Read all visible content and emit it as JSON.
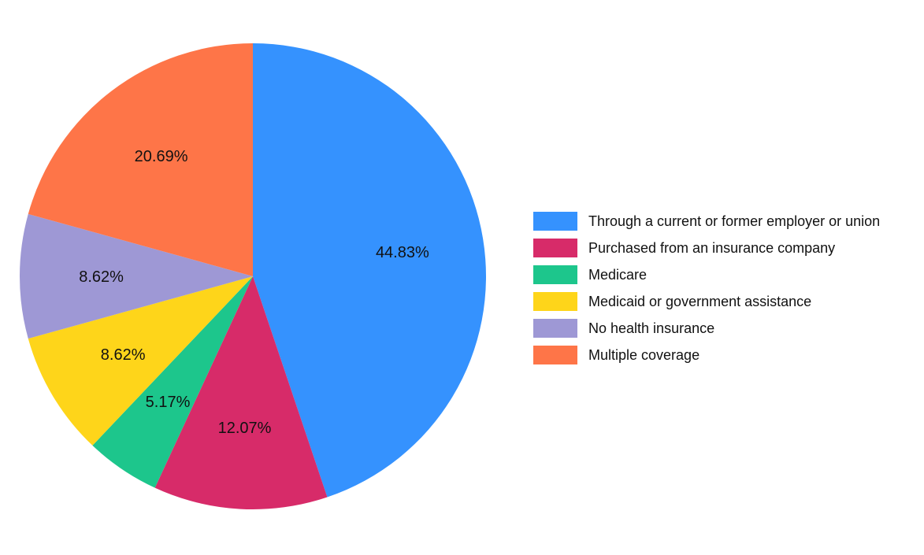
{
  "chart_data": {
    "type": "pie",
    "title": "",
    "categories": [
      "Through a current or former employer or union",
      "Purchased from an insurance company",
      "Medicare",
      "Medicaid or government assistance",
      "No health insurance",
      "Multiple coverage"
    ],
    "values": [
      44.83,
      12.07,
      5.17,
      8.62,
      8.62,
      20.69
    ],
    "labels": [
      "44.83%",
      "12.07%",
      "5.17%",
      "8.62%",
      "8.62%",
      "20.69%"
    ],
    "colors": [
      "#3592FE",
      "#D72B69",
      "#1DC68C",
      "#FED51A",
      "#9E98D5",
      "#FE7548"
    ],
    "legend_position": "right",
    "start_angle": "top",
    "direction": "clockwise"
  },
  "legend": {
    "items": [
      {
        "label": "Through a current or former employer or union",
        "color": "#3592FE"
      },
      {
        "label": "Purchased from an insurance company",
        "color": "#D72B69"
      },
      {
        "label": "Medicare",
        "color": "#1DC68C"
      },
      {
        "label": "Medicaid or government assistance",
        "color": "#FED51A"
      },
      {
        "label": "No health insurance",
        "color": "#9E98D5"
      },
      {
        "label": "Multiple coverage",
        "color": "#FE7548"
      }
    ]
  }
}
